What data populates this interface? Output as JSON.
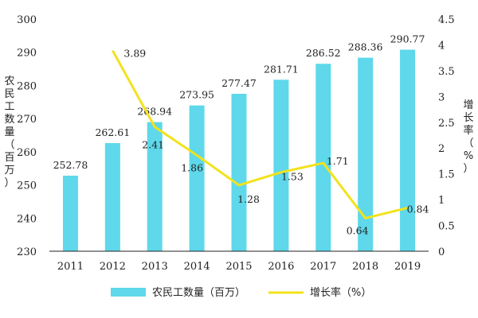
{
  "chart_data": {
    "type": "bar+line",
    "categories": [
      "2011",
      "2012",
      "2013",
      "2014",
      "2015",
      "2016",
      "2017",
      "2018",
      "2019"
    ],
    "series": [
      {
        "name": "农民工数量（百万）",
        "type": "bar",
        "axis": "left",
        "color": "#5ED8EA",
        "values": [
          252.78,
          262.61,
          268.94,
          273.95,
          277.47,
          281.71,
          286.52,
          288.36,
          290.77
        ],
        "labels": [
          "252.78",
          "262.61",
          "268.94",
          "273.95",
          "277.47",
          "281.71",
          "286.52",
          "288.36",
          "290.77"
        ]
      },
      {
        "name": "增长率（%）",
        "type": "line",
        "axis": "right",
        "color": "#F2E21C",
        "values": [
          null,
          3.89,
          2.41,
          1.86,
          1.28,
          1.53,
          1.71,
          0.64,
          0.84
        ],
        "labels": [
          "",
          "3.89",
          "2.41",
          "1.86",
          "1.28",
          "1.53",
          "1.71",
          "0.64",
          "0.84"
        ]
      }
    ],
    "ylabel_left": "农民工数量（百万）",
    "ylabel_right": "增长率（%）",
    "ylim_left": [
      230,
      300
    ],
    "yticks_left": [
      "230",
      "240",
      "250",
      "260",
      "270",
      "280",
      "290",
      "300"
    ],
    "ylim_right": [
      0,
      4.5
    ],
    "yticks_right": [
      "0",
      "0.5",
      "1",
      "1.5",
      "2",
      "2.5",
      "3",
      "3.5",
      "4",
      "4.5"
    ],
    "grid": false,
    "legend_position": "bottom"
  }
}
